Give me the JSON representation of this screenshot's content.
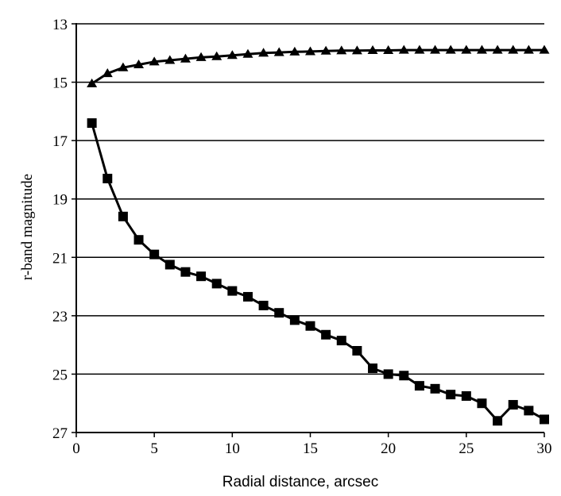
{
  "chart_data": {
    "type": "line",
    "title": "",
    "xlabel": "Radial distance, arcsec",
    "ylabel": "r-band magnitude",
    "xlim": [
      0,
      30
    ],
    "ylim": [
      13,
      27
    ],
    "y_inverted": true,
    "x_ticks": [
      "0",
      "5",
      "10",
      "15",
      "20",
      "25",
      "30"
    ],
    "y_ticks": [
      "13",
      "15",
      "17",
      "19",
      "21",
      "23",
      "25",
      "27"
    ],
    "grid": "horizontal",
    "legend": "none",
    "series": [
      {
        "marker": "triangle",
        "color": "#000000",
        "x": [
          1,
          2,
          3,
          4,
          5,
          6,
          7,
          8,
          9,
          10,
          11,
          12,
          13,
          14,
          15,
          16,
          17,
          18,
          19,
          20,
          21,
          22,
          23,
          24,
          25,
          26,
          27,
          28,
          29,
          30
        ],
        "y": [
          15.05,
          14.7,
          14.5,
          14.4,
          14.3,
          14.25,
          14.2,
          14.15,
          14.12,
          14.08,
          14.04,
          14.0,
          13.98,
          13.96,
          13.95,
          13.93,
          13.92,
          13.92,
          13.91,
          13.91,
          13.9,
          13.9,
          13.9,
          13.9,
          13.9,
          13.9,
          13.9,
          13.9,
          13.9,
          13.9
        ]
      },
      {
        "marker": "square",
        "color": "#000000",
        "x": [
          1,
          2,
          3,
          4,
          5,
          6,
          7,
          8,
          9,
          10,
          11,
          12,
          13,
          14,
          15,
          16,
          17,
          18,
          19,
          20,
          21,
          22,
          23,
          24,
          25,
          26,
          27,
          28,
          29,
          30
        ],
        "y": [
          16.4,
          18.3,
          19.6,
          20.4,
          20.9,
          21.25,
          21.5,
          21.65,
          21.9,
          22.15,
          22.35,
          22.65,
          22.9,
          23.15,
          23.35,
          23.65,
          23.85,
          24.2,
          24.8,
          25.0,
          25.05,
          25.4,
          25.5,
          25.7,
          25.75,
          26.0,
          26.6,
          26.05,
          26.25,
          26.55
        ]
      }
    ]
  }
}
